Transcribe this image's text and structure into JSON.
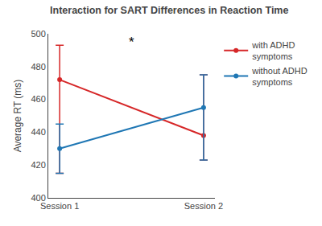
{
  "chart_data": {
    "type": "line",
    "title": "Interaction for SART Differences in Reaction Time",
    "ylabel": "Average RT (ms)",
    "categories": [
      "Session 1",
      "Session 2"
    ],
    "series": [
      {
        "name": "with ADHD\nsymptoms",
        "color": "#d62728",
        "values": [
          472,
          438
        ],
        "error_low": [
          57,
          15
        ],
        "error_high": [
          21,
          37
        ]
      },
      {
        "name": "without ADHD\nsymptoms",
        "color": "#1f77b4",
        "values": [
          430,
          455
        ],
        "error_low": [
          15,
          32
        ],
        "error_high": [
          15,
          20
        ]
      }
    ],
    "annotations": [
      {
        "text": "*",
        "y": 489
      }
    ],
    "ylim": [
      400,
      500
    ],
    "yticks": [
      400,
      420,
      440,
      460,
      480,
      500
    ],
    "grid": false,
    "legend": "right"
  }
}
